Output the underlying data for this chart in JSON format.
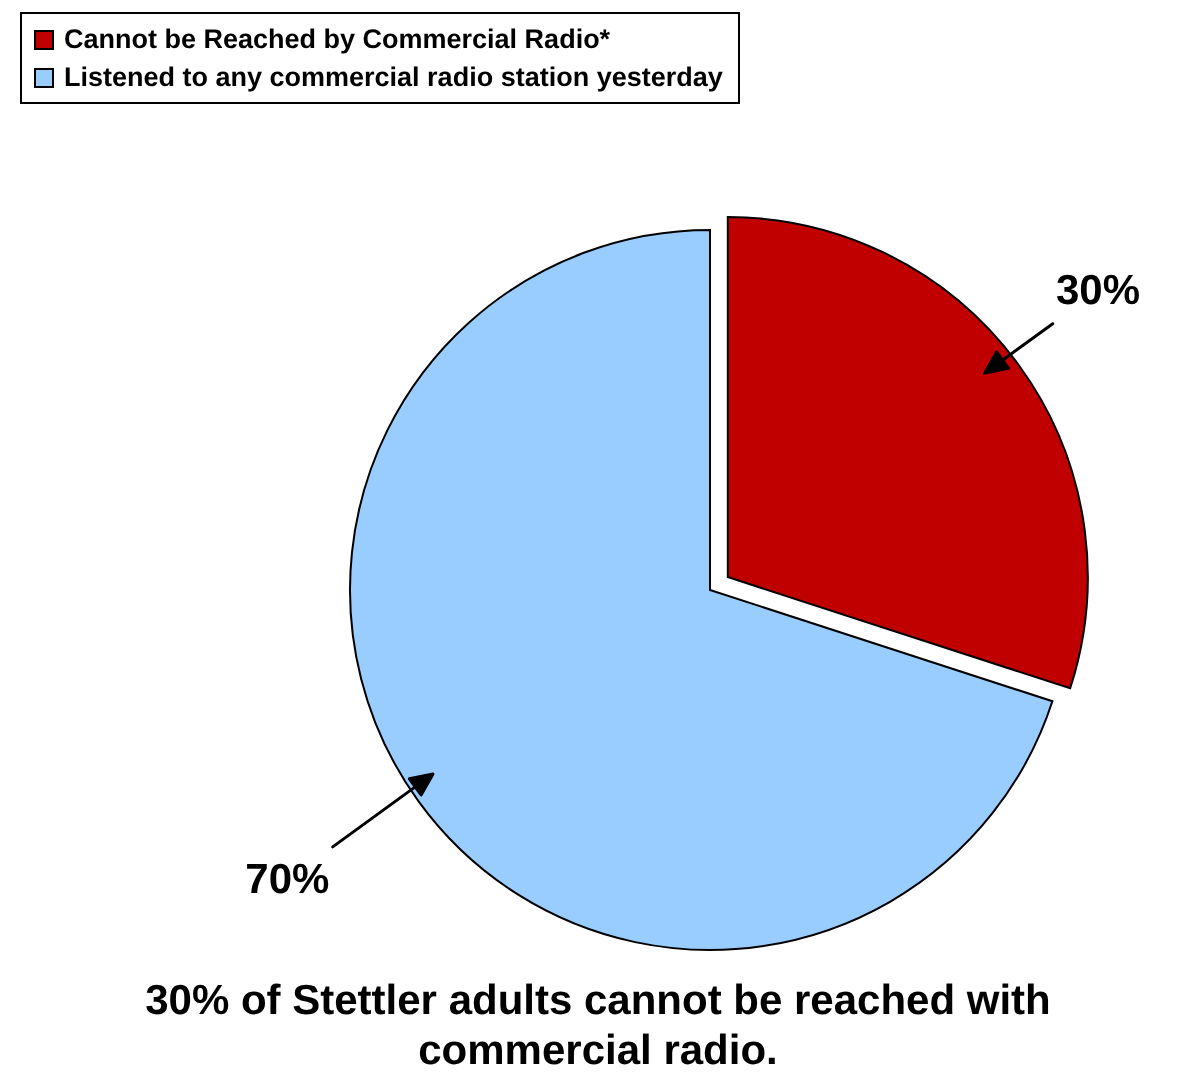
{
  "chart_data": {
    "type": "pie",
    "categories": [
      "Cannot be Reached by Commercial Radio*",
      "Listened to any commercial radio station yesterday"
    ],
    "values": [
      30,
      70
    ],
    "colors": [
      "#c00000",
      "#99ccff"
    ],
    "value_labels": [
      "30%",
      "70%"
    ],
    "legend": "top left",
    "annotations": [
      "30% of Stettler adults cannot be reached with commercial radio."
    ]
  }
}
